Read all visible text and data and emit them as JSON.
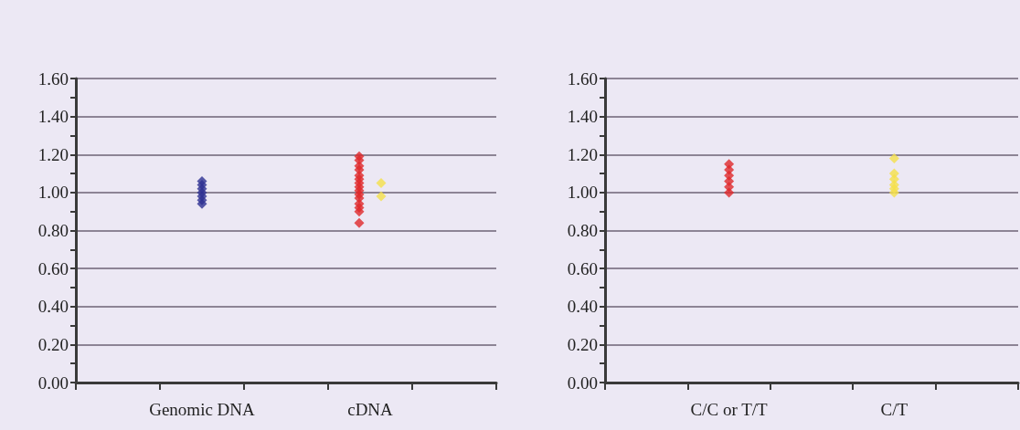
{
  "chart_data": [
    {
      "type": "scatter",
      "marker": "diamond",
      "grid": "y",
      "ylim": [
        0,
        1.6
      ],
      "categories": [
        null,
        "Genomic DNA",
        null,
        "cDNA",
        null
      ],
      "yticks": [
        {
          "value": 0,
          "label": "0.00"
        },
        {
          "value": 0.1,
          "label": null
        },
        {
          "value": 0.2,
          "label": "0.20"
        },
        {
          "value": 0.3,
          "label": null
        },
        {
          "value": 0.4,
          "label": "0.40"
        },
        {
          "value": 0.5,
          "label": null
        },
        {
          "value": 0.6,
          "label": "0.60"
        },
        {
          "value": 0.7,
          "label": null
        },
        {
          "value": 0.8,
          "label": "0.80"
        },
        {
          "value": 0.9,
          "label": null
        },
        {
          "value": 1,
          "label": "1.00"
        },
        {
          "value": 1.1,
          "label": null
        },
        {
          "value": 1.2,
          "label": "1.20"
        },
        {
          "value": 1.3,
          "label": null
        },
        {
          "value": 1.4,
          "label": "1.40"
        },
        {
          "value": 1.5,
          "label": null
        },
        {
          "value": 1.6,
          "label": "1.60"
        }
      ],
      "series": [
        {
          "color": "#2e3192",
          "x": [
            "Genomic DNA",
            "Genomic DNA",
            "Genomic DNA",
            "Genomic DNA",
            "Genomic DNA",
            "Genomic DNA",
            "Genomic DNA"
          ],
          "values": [
            0.94,
            0.96,
            0.98,
            1.0,
            1.02,
            1.04,
            1.06
          ]
        },
        {
          "color": "#e0282a",
          "x": [
            "cDNA",
            "cDNA",
            "cDNA",
            "cDNA",
            "cDNA",
            "cDNA",
            "cDNA",
            "cDNA",
            "cDNA",
            "cDNA",
            "cDNA",
            "cDNA",
            "cDNA",
            "cDNA",
            "cDNA"
          ],
          "values": [
            1.19,
            1.17,
            1.14,
            1.12,
            1.09,
            1.07,
            1.05,
            1.03,
            1.01,
            0.99,
            0.97,
            0.94,
            0.92,
            0.9,
            0.84
          ]
        },
        {
          "color": "#f5e04a",
          "x": [
            "cDNA",
            "cDNA"
          ],
          "values": [
            1.05,
            0.98
          ]
        }
      ]
    },
    {
      "type": "scatter",
      "marker": "diamond",
      "grid": "y",
      "ylim": [
        0,
        1.6
      ],
      "categories": [
        null,
        "C/C or T/T",
        null,
        "C/T",
        null
      ],
      "yticks": [
        {
          "value": 0,
          "label": "0.00"
        },
        {
          "value": 0.1,
          "label": null
        },
        {
          "value": 0.2,
          "label": "0.20"
        },
        {
          "value": 0.3,
          "label": null
        },
        {
          "value": 0.4,
          "label": "0.40"
        },
        {
          "value": 0.5,
          "label": null
        },
        {
          "value": 0.6,
          "label": "0.60"
        },
        {
          "value": 0.7,
          "label": null
        },
        {
          "value": 0.8,
          "label": "0.80"
        },
        {
          "value": 0.9,
          "label": null
        },
        {
          "value": 1,
          "label": "1.00"
        },
        {
          "value": 1.1,
          "label": null
        },
        {
          "value": 1.2,
          "label": "1.20"
        },
        {
          "value": 1.3,
          "label": null
        },
        {
          "value": 1.4,
          "label": "1.40"
        },
        {
          "value": 1.5,
          "label": null
        },
        {
          "value": 1.6,
          "label": "1.60"
        }
      ],
      "series": [
        {
          "color": "#e0282a",
          "x": [
            "C/C or T/T",
            "C/C or T/T",
            "C/C or T/T",
            "C/C or T/T",
            "C/C or T/T",
            "C/C or T/T"
          ],
          "values": [
            1.15,
            1.12,
            1.09,
            1.06,
            1.03,
            1.0
          ]
        },
        {
          "color": "#f5e04a",
          "x": [
            "C/T",
            "C/T",
            "C/T",
            "C/T",
            "C/T",
            "C/T"
          ],
          "values": [
            1.18,
            1.1,
            1.07,
            1.04,
            1.02,
            1.0
          ]
        }
      ]
    }
  ]
}
